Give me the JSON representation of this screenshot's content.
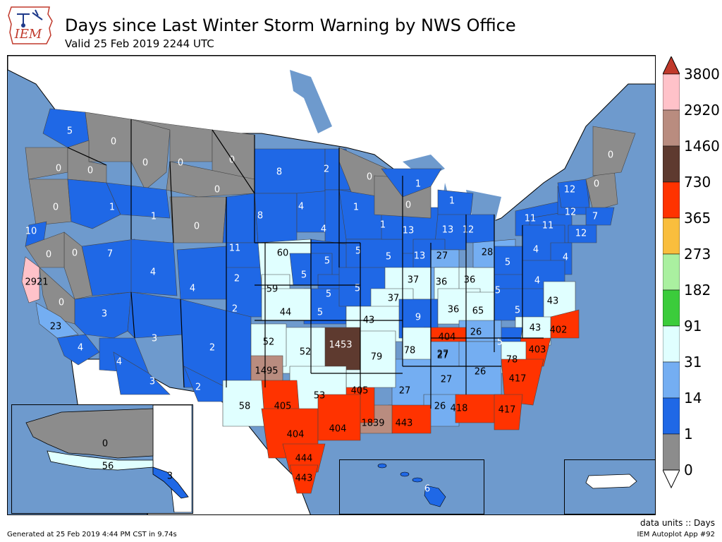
{
  "header": {
    "logo_text": "IEM",
    "title": "Days since Last Winter Storm Warning by NWS Office",
    "subtitle": "Valid 25 Feb 2019 2244 UTC"
  },
  "colors": {
    "ocean": "#6e9acd",
    "land_outside": "#ffffff",
    "state_border": "#000000",
    "cwa_border": "#555555"
  },
  "legend": {
    "bins": [
      {
        "lower": "0",
        "upper": "1",
        "color": "#8c8c8c"
      },
      {
        "lower": "1",
        "upper": "14",
        "color": "#1f68e6"
      },
      {
        "lower": "14",
        "upper": "31",
        "color": "#74aef2"
      },
      {
        "lower": "31",
        "upper": "91",
        "color": "#e0ffff"
      },
      {
        "lower": "91",
        "upper": "182",
        "color": "#3bcc3b"
      },
      {
        "lower": "182",
        "upper": "273",
        "color": "#aaf0a0"
      },
      {
        "lower": "273",
        "upper": "365",
        "color": "#f9be3d"
      },
      {
        "lower": "365",
        "upper": "730",
        "color": "#ff3300"
      },
      {
        "lower": "730",
        "upper": "1460",
        "color": "#5e3a2f"
      },
      {
        "lower": "1460",
        "upper": "2920",
        "color": "#b98c7f"
      },
      {
        "lower": "2920",
        "upper": "3800",
        "color": "#ffc2c9"
      }
    ],
    "ticks": [
      "0",
      "1",
      "14",
      "31",
      "91",
      "182",
      "273",
      "365",
      "730",
      "1460",
      "2920",
      "3800"
    ],
    "under_color": "#ffffff",
    "over_color": "#c0392b"
  },
  "offices": [
    {
      "id": "SEW",
      "days": "5",
      "color": "#1f68e6"
    },
    {
      "id": "OTX",
      "days": "0",
      "color": "#8c8c8c"
    },
    {
      "id": "PQR",
      "days": "0",
      "color": "#8c8c8c"
    },
    {
      "id": "PDT",
      "days": "0",
      "color": "#8c8c8c"
    },
    {
      "id": "MSO",
      "days": "0",
      "color": "#8c8c8c"
    },
    {
      "id": "TFX",
      "days": "0",
      "color": "#8c8c8c"
    },
    {
      "id": "GGW",
      "days": "0",
      "color": "#8c8c8c"
    },
    {
      "id": "BYZ",
      "days": "0",
      "color": "#8c8c8c"
    },
    {
      "id": "MFR",
      "days": "0",
      "color": "#8c8c8c"
    },
    {
      "id": "BOI",
      "days": "1",
      "color": "#1f68e6"
    },
    {
      "id": "PIH",
      "days": "1",
      "color": "#1f68e6"
    },
    {
      "id": "RIW",
      "days": "0",
      "color": "#8c8c8c"
    },
    {
      "id": "EKA",
      "days": "10",
      "color": "#1f68e6"
    },
    {
      "id": "LKN",
      "days": "7",
      "color": "#1f68e6"
    },
    {
      "id": "REV",
      "days": "0",
      "color": "#8c8c8c"
    },
    {
      "id": "STO",
      "days": "0",
      "color": "#8c8c8c"
    },
    {
      "id": "MTR",
      "days": "2921",
      "color": "#ffc2c9"
    },
    {
      "id": "HNX",
      "days": "0",
      "color": "#8c8c8c"
    },
    {
      "id": "LOX",
      "days": "23",
      "color": "#74aef2"
    },
    {
      "id": "SGX",
      "days": "4",
      "color": "#1f68e6"
    },
    {
      "id": "VEF",
      "days": "3",
      "color": "#1f68e6"
    },
    {
      "id": "SLC",
      "days": "4",
      "color": "#1f68e6"
    },
    {
      "id": "GJT",
      "days": "4",
      "color": "#1f68e6"
    },
    {
      "id": "CYS",
      "days": "11",
      "color": "#1f68e6"
    },
    {
      "id": "BOU",
      "days": "2",
      "color": "#1f68e6"
    },
    {
      "id": "PUB",
      "days": "2",
      "color": "#1f68e6"
    },
    {
      "id": "FGZ",
      "days": "3",
      "color": "#1f68e6"
    },
    {
      "id": "PSR",
      "days": "4",
      "color": "#1f68e6"
    },
    {
      "id": "TWC",
      "days": "3",
      "color": "#1f68e6"
    },
    {
      "id": "ABQ",
      "days": "2",
      "color": "#1f68e6"
    },
    {
      "id": "EPZ",
      "days": "2",
      "color": "#1f68e6"
    },
    {
      "id": "BIS",
      "days": "8",
      "color": "#1f68e6"
    },
    {
      "id": "FGF",
      "days": "2",
      "color": "#1f68e6"
    },
    {
      "id": "UNR",
      "days": "8",
      "color": "#1f68e6"
    },
    {
      "id": "ABR",
      "days": "4",
      "color": "#1f68e6"
    },
    {
      "id": "FSD",
      "days": "4",
      "color": "#1f68e6"
    },
    {
      "id": "LBF",
      "days": "60",
      "color": "#e0ffff"
    },
    {
      "id": "OAX",
      "days": "5",
      "color": "#1f68e6"
    },
    {
      "id": "GID",
      "days": "5",
      "color": "#1f68e6"
    },
    {
      "id": "GLD",
      "days": "59",
      "color": "#e0ffff"
    },
    {
      "id": "TOP",
      "days": "5",
      "color": "#1f68e6"
    },
    {
      "id": "ICT",
      "days": "5",
      "color": "#1f68e6"
    },
    {
      "id": "DDC",
      "days": "44",
      "color": "#e0ffff"
    },
    {
      "id": "DLH",
      "days": "0",
      "color": "#8c8c8c"
    },
    {
      "id": "MPX",
      "days": "1",
      "color": "#1f68e6"
    },
    {
      "id": "DMX",
      "days": "5",
      "color": "#1f68e6"
    },
    {
      "id": "DVN",
      "days": "5",
      "color": "#1f68e6"
    },
    {
      "id": "EAX",
      "days": "5",
      "color": "#1f68e6"
    },
    {
      "id": "ARX",
      "days": "1",
      "color": "#1f68e6"
    },
    {
      "id": "MKX",
      "days": "13",
      "color": "#1f68e6"
    },
    {
      "id": "GRB",
      "days": "0",
      "color": "#8c8c8c"
    },
    {
      "id": "MQT",
      "days": "1",
      "color": "#1f68e6"
    },
    {
      "id": "APX",
      "days": "1",
      "color": "#1f68e6"
    },
    {
      "id": "GRR",
      "days": "13",
      "color": "#1f68e6"
    },
    {
      "id": "DTX",
      "days": "12",
      "color": "#1f68e6"
    },
    {
      "id": "LOT",
      "days": "13",
      "color": "#1f68e6"
    },
    {
      "id": "ILX",
      "days": "37",
      "color": "#e0ffff"
    },
    {
      "id": "LSX",
      "days": "37",
      "color": "#e0ffff"
    },
    {
      "id": "IND",
      "days": "27",
      "color": "#74aef2"
    },
    {
      "id": "IWX",
      "days": "27",
      "color": "#74aef2"
    },
    {
      "id": "ILN",
      "days": "36",
      "color": "#e0ffff"
    },
    {
      "id": "IVX",
      "days": "36",
      "color": "#e0ffff"
    },
    {
      "id": "CLE",
      "days": "28",
      "color": "#74aef2"
    },
    {
      "id": "SGF",
      "days": "43",
      "color": "#e0ffff"
    },
    {
      "id": "PAH",
      "days": "9",
      "color": "#1f68e6"
    },
    {
      "id": "LMK",
      "days": "36",
      "color": "#e0ffff"
    },
    {
      "id": "JKL",
      "days": "65",
      "color": "#e0ffff"
    },
    {
      "id": "RLX",
      "days": "5",
      "color": "#1f68e6"
    },
    {
      "id": "PBZ",
      "days": "5",
      "color": "#1f68e6"
    },
    {
      "id": "BUF",
      "days": "11",
      "color": "#1f68e6"
    },
    {
      "id": "BGM",
      "days": "11",
      "color": "#1f68e6"
    },
    {
      "id": "ALY",
      "days": "12",
      "color": "#1f68e6"
    },
    {
      "id": "BTV",
      "days": "12",
      "color": "#1f68e6"
    },
    {
      "id": "GYX",
      "days": "0",
      "color": "#8c8c8c"
    },
    {
      "id": "CAR",
      "days": "0",
      "color": "#8c8c8c"
    },
    {
      "id": "BOX",
      "days": "7",
      "color": "#1f68e6"
    },
    {
      "id": "OKX",
      "days": "12",
      "color": "#1f68e6"
    },
    {
      "id": "CTP",
      "days": "4",
      "color": "#1f68e6"
    },
    {
      "id": "PHI",
      "days": "4",
      "color": "#1f68e6"
    },
    {
      "id": "LWX",
      "days": "4",
      "color": "#1f68e6"
    },
    {
      "id": "RNK",
      "days": "5",
      "color": "#1f68e6"
    },
    {
      "id": "AKQ",
      "days": "43",
      "color": "#e0ffff"
    },
    {
      "id": "MHX",
      "days": "402",
      "color": "#ff3300"
    },
    {
      "id": "RAH",
      "days": "43",
      "color": "#e0ffff"
    },
    {
      "id": "ILM",
      "days": "403",
      "color": "#ff3300"
    },
    {
      "id": "GSP",
      "days": "5",
      "color": "#1f68e6"
    },
    {
      "id": "CAE",
      "days": "78",
      "color": "#e0ffff"
    },
    {
      "id": "CHS",
      "days": "417",
      "color": "#ff3300"
    },
    {
      "id": "MRX",
      "days": "26",
      "color": "#74aef2"
    },
    {
      "id": "OHX",
      "days": "404",
      "color": "#ff3300"
    },
    {
      "id": "MEG",
      "days": "78",
      "color": "#e0ffff"
    },
    {
      "id": "HUN",
      "days": "27",
      "color": "#74aef2"
    },
    {
      "id": "FFC",
      "days": "26",
      "color": "#74aef2"
    },
    {
      "id": "BMX",
      "days": "27",
      "color": "#74aef2"
    },
    {
      "id": "JAN",
      "days": "27",
      "color": "#74aef2"
    },
    {
      "id": "MOB",
      "days": "26",
      "color": "#74aef2"
    },
    {
      "id": "TAE",
      "days": "418",
      "color": "#ff3300"
    },
    {
      "id": "JAX",
      "days": "417",
      "color": "#ff3300"
    },
    {
      "id": "LIX",
      "days": "443",
      "color": "#ff3300"
    },
    {
      "id": "LCH",
      "days": "1839",
      "color": "#b98c7f"
    },
    {
      "id": "SHV",
      "days": "405",
      "color": "#ff3300"
    },
    {
      "id": "LZK",
      "days": "79",
      "color": "#e0ffff"
    },
    {
      "id": "TSA",
      "days": "1453",
      "color": "#5e3a2f"
    },
    {
      "id": "OUN",
      "days": "52",
      "color": "#e0ffff"
    },
    {
      "id": "AMA",
      "days": "52",
      "color": "#e0ffff"
    },
    {
      "id": "LUB",
      "days": "1495",
      "color": "#b98c7f"
    },
    {
      "id": "FWD",
      "days": "53",
      "color": "#e0ffff"
    },
    {
      "id": "MAF",
      "days": "58",
      "color": "#e0ffff"
    },
    {
      "id": "SJT",
      "days": "405",
      "color": "#ff3300"
    },
    {
      "id": "EWX",
      "days": "404",
      "color": "#ff3300"
    },
    {
      "id": "HGX",
      "days": "404",
      "color": "#ff3300"
    },
    {
      "id": "CRP",
      "days": "444",
      "color": "#ff3300"
    },
    {
      "id": "BRO",
      "days": "443",
      "color": "#ff3300"
    },
    {
      "id": "AFG",
      "days": "0",
      "color": "#8c8c8c"
    },
    {
      "id": "AFC",
      "days": "56",
      "color": "#e0ffff"
    },
    {
      "id": "AJK",
      "days": "3",
      "color": "#1f68e6"
    },
    {
      "id": "HFO",
      "days": "6",
      "color": "#1f68e6"
    }
  ],
  "footer": {
    "generated": "Generated at 25 Feb 2019 4:44 PM CST in 9.74s",
    "units": "data units :: Days",
    "app": "IEM Autoplot App #92"
  }
}
